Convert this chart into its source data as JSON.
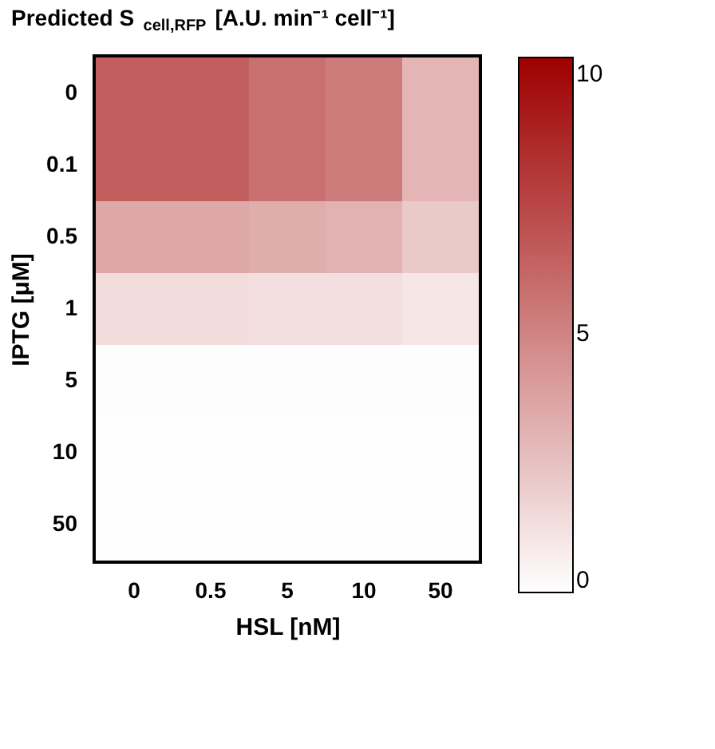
{
  "chart_data": {
    "type": "heatmap",
    "title": "Predicted S$_{cell,RFP}$ [A.U. min⁻¹ cell⁻¹]",
    "xlabel": "HSL [nM]",
    "ylabel": "IPTG [μM]",
    "categories": [
      "0",
      "0.5",
      "5",
      "10",
      "50"
    ],
    "y_categories": [
      "0",
      "0.1",
      "0.5",
      "1",
      "5",
      "10",
      "50"
    ],
    "cells": [
      [
        6.5,
        6.5,
        5.8,
        5.3,
        3.0
      ],
      [
        6.5,
        6.5,
        5.8,
        5.3,
        3.0
      ],
      [
        3.5,
        3.5,
        3.3,
        3.1,
        2.2
      ],
      [
        1.4,
        1.4,
        1.3,
        1.3,
        1.0
      ],
      [
        0.1,
        0.1,
        0.1,
        0.1,
        0.1
      ],
      [
        0.05,
        0.05,
        0.05,
        0.05,
        0.05
      ],
      [
        0.05,
        0.05,
        0.05,
        0.05,
        0.05
      ]
    ],
    "clim": [
      0,
      10.3
    ],
    "cticks": [
      0,
      5,
      10
    ],
    "colors": [
      "#ffffff",
      "#9e0000"
    ]
  }
}
